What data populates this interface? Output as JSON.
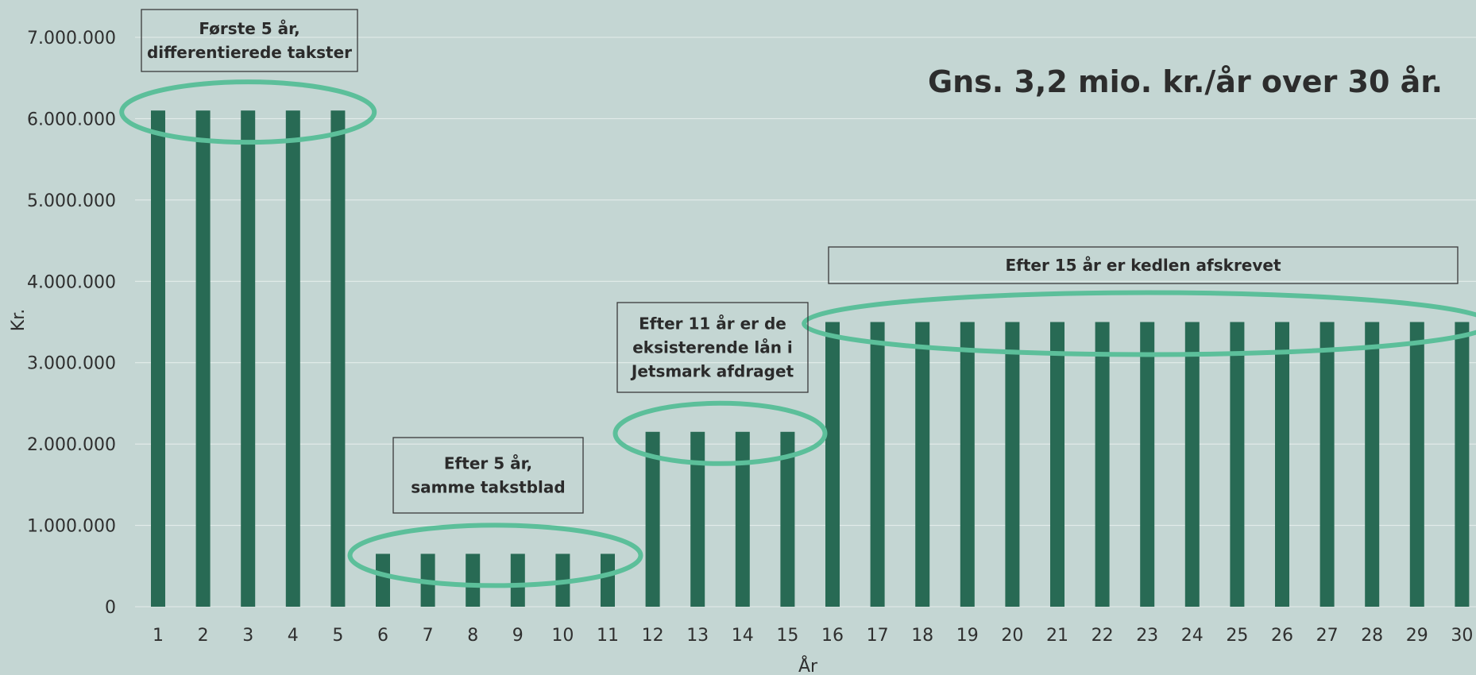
{
  "chart_data": {
    "type": "bar",
    "xlabel": "År",
    "ylabel": "Kr.",
    "ylim": [
      0,
      7000000
    ],
    "yticks": [
      "0",
      "1.000.000",
      "2.000.000",
      "3.000.000",
      "4.000.000",
      "5.000.000",
      "6.000.000",
      "7.000.000"
    ],
    "categories": [
      "1",
      "2",
      "3",
      "4",
      "5",
      "6",
      "7",
      "8",
      "9",
      "10",
      "11",
      "12",
      "13",
      "14",
      "15",
      "16",
      "17",
      "18",
      "19",
      "20",
      "21",
      "22",
      "23",
      "24",
      "25",
      "26",
      "27",
      "28",
      "29",
      "30"
    ],
    "values": [
      6100000,
      6100000,
      6100000,
      6100000,
      6100000,
      650000,
      650000,
      650000,
      650000,
      650000,
      650000,
      2150000,
      2150000,
      2150000,
      2150000,
      3500000,
      3500000,
      3500000,
      3500000,
      3500000,
      3500000,
      3500000,
      3500000,
      3500000,
      3500000,
      3500000,
      3500000,
      3500000,
      3500000,
      3500000
    ],
    "bar_color": "#286a54",
    "highlight_color": "#5cbf9a",
    "grid": true,
    "headline": "Gns. 3,2 mio. kr./år over 30 år.",
    "annotations": [
      {
        "lines": [
          "Første 5 år,",
          "differentierede takster"
        ],
        "years": [
          1,
          5
        ]
      },
      {
        "lines": [
          "Efter 5 år,",
          "samme takstblad"
        ],
        "years": [
          6,
          11
        ]
      },
      {
        "lines": [
          "Efter 11 år er de",
          "eksisterende lån i",
          "Jetsmark afdraget"
        ],
        "years": [
          12,
          15
        ]
      },
      {
        "lines": [
          "Efter 15 år er kedlen afskrevet"
        ],
        "years": [
          16,
          30
        ]
      }
    ]
  }
}
